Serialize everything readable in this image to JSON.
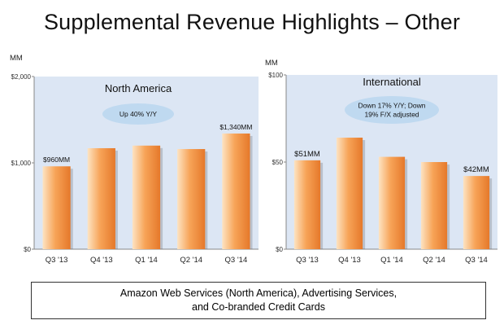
{
  "title": "Supplemental Revenue Highlights – Other",
  "footnote": {
    "line1": "Amazon Web Services (North America), Advertising Services,",
    "line2": "and Co-branded Credit Cards"
  },
  "colors": {
    "bar_light": "#fde3c2",
    "bar_mid": "#f7a458",
    "bar_dark": "#e5782a",
    "plot_bg": "#dce6f4",
    "callout": "#bfd9f0"
  },
  "chart_data": [
    {
      "type": "bar",
      "title": "North America",
      "unit_label": "MM",
      "callout": [
        "Up 40% Y/Y"
      ],
      "categories": [
        "Q3 '13",
        "Q4 '13",
        "Q1 '14",
        "Q2 '14",
        "Q3 '14"
      ],
      "values": [
        960,
        1170,
        1200,
        1160,
        1340
      ],
      "data_labels": [
        "$960MM",
        "",
        "",
        "",
        "$1,340MM"
      ],
      "ylim": [
        0,
        2000
      ],
      "yticks": [
        0,
        1000,
        2000
      ],
      "ytick_labels": [
        "$0",
        "$1,000",
        "$2,000"
      ],
      "grid": false
    },
    {
      "type": "bar",
      "title": "International",
      "unit_label": "MM",
      "callout": [
        "Down 17% Y/Y; Down",
        "19% F/X adjusted"
      ],
      "categories": [
        "Q3 '13",
        "Q4 '13",
        "Q1 '14",
        "Q2 '14",
        "Q3 '14"
      ],
      "values": [
        51,
        64,
        53,
        50,
        42
      ],
      "data_labels": [
        "$51MM",
        "",
        "",
        "",
        "$42MM"
      ],
      "ylim": [
        0,
        100
      ],
      "yticks": [
        0,
        50,
        100
      ],
      "ytick_labels": [
        "$0",
        "$50",
        "$100"
      ],
      "grid": false
    }
  ]
}
